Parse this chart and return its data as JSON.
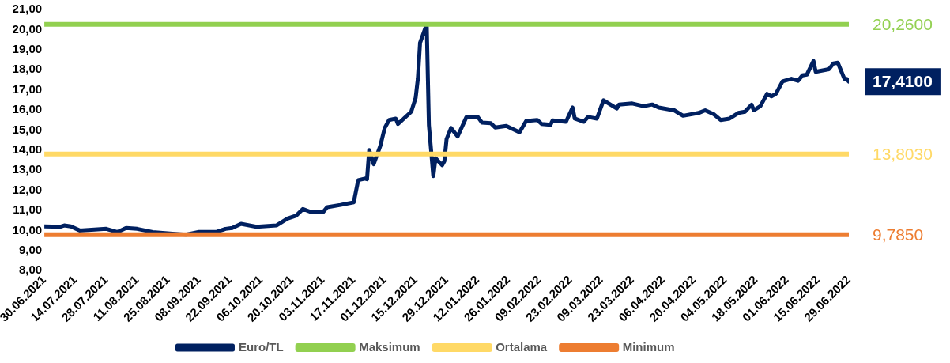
{
  "chart_data": {
    "type": "line",
    "xlim": [
      "2021-06-30",
      "2022-06-29"
    ],
    "xticks": [
      {
        "value": "2021-06-30",
        "label": "30.06.2021"
      },
      {
        "value": "2021-07-14",
        "label": "14.07.2021"
      },
      {
        "value": "2021-07-28",
        "label": "28.07.2021"
      },
      {
        "value": "2021-08-11",
        "label": "11.08.2021"
      },
      {
        "value": "2021-08-25",
        "label": "25.08.2021"
      },
      {
        "value": "2021-09-08",
        "label": "08.09.2021"
      },
      {
        "value": "2021-09-22",
        "label": "22.09.2021"
      },
      {
        "value": "2021-10-06",
        "label": "06.10.2021"
      },
      {
        "value": "2021-10-20",
        "label": "20.10.2021"
      },
      {
        "value": "2021-11-03",
        "label": "03.11.2021"
      },
      {
        "value": "2021-11-17",
        "label": "17.11.2021"
      },
      {
        "value": "2021-12-01",
        "label": "01.12.2021"
      },
      {
        "value": "2021-12-15",
        "label": "15.12.2021"
      },
      {
        "value": "2021-12-29",
        "label": "29.12.2021"
      },
      {
        "value": "2022-01-12",
        "label": "12.01.2022"
      },
      {
        "value": "2022-01-26",
        "label": "26.01.2022"
      },
      {
        "value": "2022-02-09",
        "label": "09.02.2022"
      },
      {
        "value": "2022-02-23",
        "label": "23.02.2022"
      },
      {
        "value": "2022-03-09",
        "label": "09.03.2022"
      },
      {
        "value": "2022-03-23",
        "label": "23.03.2022"
      },
      {
        "value": "2022-04-06",
        "label": "06.04.2022"
      },
      {
        "value": "2022-04-20",
        "label": "20.04.2022"
      },
      {
        "value": "2022-05-04",
        "label": "04.05.2022"
      },
      {
        "value": "2022-05-18",
        "label": "18.05.2022"
      },
      {
        "value": "2022-06-01",
        "label": "01.06.2022"
      },
      {
        "value": "2022-06-15",
        "label": "15.06.2022"
      },
      {
        "value": "2022-06-29",
        "label": "29.06.2022"
      }
    ],
    "ylim": [
      8,
      21
    ],
    "yticks": [
      {
        "value": 8,
        "label": "8,00"
      },
      {
        "value": 9,
        "label": "9,00"
      },
      {
        "value": 10,
        "label": "10,00"
      },
      {
        "value": 11,
        "label": "11,00"
      },
      {
        "value": 12,
        "label": "12,00"
      },
      {
        "value": 13,
        "label": "13,00"
      },
      {
        "value": 14,
        "label": "14,00"
      },
      {
        "value": 15,
        "label": "15,00"
      },
      {
        "value": 16,
        "label": "16,00"
      },
      {
        "value": 17,
        "label": "17,00"
      },
      {
        "value": 18,
        "label": "18,00"
      },
      {
        "value": 19,
        "label": "19,00"
      },
      {
        "value": 20,
        "label": "20,00"
      },
      {
        "value": 21,
        "label": "21,00"
      }
    ],
    "grid": false,
    "legend": "bottom",
    "marker": "none",
    "line_style": "solid",
    "series": [
      {
        "name": "Euro/TL",
        "color": "#002060",
        "x": [
          "2021-06-30",
          "2021-07-07",
          "2021-07-09",
          "2021-07-12",
          "2021-07-16",
          "2021-07-28",
          "2021-08-02",
          "2021-08-06",
          "2021-08-11",
          "2021-08-18",
          "2021-08-27",
          "2021-09-02",
          "2021-09-08",
          "2021-09-16",
          "2021-09-20",
          "2021-09-23",
          "2021-09-27",
          "2021-10-04",
          "2021-10-13",
          "2021-10-18",
          "2021-10-22",
          "2021-10-25",
          "2021-10-29",
          "2021-11-03",
          "2021-11-05",
          "2021-11-11",
          "2021-11-17",
          "2021-11-19",
          "2021-11-22",
          "2021-11-23",
          "2021-11-24",
          "2021-11-26",
          "2021-11-29",
          "2021-12-01",
          "2021-12-03",
          "2021-12-06",
          "2021-12-07",
          "2021-12-13",
          "2021-12-15",
          "2021-12-16",
          "2021-12-17",
          "2021-12-20",
          "2021-12-21",
          "2021-12-23",
          "2021-12-24",
          "2021-12-27",
          "2021-12-28",
          "2021-12-29",
          "2021-12-31",
          "2022-01-03",
          "2022-01-07",
          "2022-01-12",
          "2022-01-14",
          "2022-01-18",
          "2022-01-20",
          "2022-01-25",
          "2022-01-31",
          "2022-02-03",
          "2022-02-08",
          "2022-02-10",
          "2022-02-14",
          "2022-02-15",
          "2022-02-21",
          "2022-02-24",
          "2022-02-25",
          "2022-03-01",
          "2022-03-03",
          "2022-03-07",
          "2022-03-10",
          "2022-03-16",
          "2022-03-17",
          "2022-03-23",
          "2022-03-28",
          "2022-04-01",
          "2022-04-04",
          "2022-04-11",
          "2022-04-15",
          "2022-04-22",
          "2022-04-25",
          "2022-04-29",
          "2022-05-02",
          "2022-05-06",
          "2022-05-10",
          "2022-05-13",
          "2022-05-16",
          "2022-05-17",
          "2022-05-20",
          "2022-05-23",
          "2022-05-25",
          "2022-05-27",
          "2022-05-30",
          "2022-06-03",
          "2022-06-06",
          "2022-06-08",
          "2022-06-10",
          "2022-06-13",
          "2022-06-14",
          "2022-06-20",
          "2022-06-22",
          "2022-06-24",
          "2022-06-27",
          "2022-06-28",
          "2022-06-29"
        ],
        "values": [
          10.2,
          10.18,
          10.25,
          10.2,
          10.0,
          10.08,
          9.92,
          10.12,
          10.08,
          9.92,
          9.84,
          9.79,
          9.93,
          9.93,
          10.08,
          10.12,
          10.33,
          10.18,
          10.25,
          10.59,
          10.74,
          11.07,
          10.9,
          10.9,
          11.16,
          11.27,
          11.4,
          12.5,
          12.58,
          12.55,
          14.0,
          13.3,
          14.2,
          15.1,
          15.5,
          15.57,
          15.3,
          15.91,
          16.6,
          17.55,
          19.34,
          20.26,
          15.24,
          12.7,
          13.6,
          13.25,
          13.45,
          14.55,
          15.1,
          14.68,
          15.65,
          15.67,
          15.37,
          15.34,
          15.12,
          15.2,
          14.89,
          15.45,
          15.5,
          15.3,
          15.26,
          15.48,
          15.41,
          16.12,
          15.57,
          15.41,
          15.65,
          15.57,
          16.48,
          16.07,
          16.27,
          16.32,
          16.19,
          16.27,
          16.12,
          15.98,
          15.71,
          15.85,
          15.98,
          15.78,
          15.5,
          15.57,
          15.85,
          15.91,
          16.26,
          15.98,
          16.19,
          16.8,
          16.68,
          16.8,
          17.42,
          17.55,
          17.45,
          17.72,
          17.76,
          18.44,
          17.9,
          18.03,
          18.31,
          18.35,
          17.55,
          17.55,
          17.41
        ],
        "value_labels": [
          null,
          null,
          null,
          null,
          null,
          null,
          null,
          null,
          null,
          null,
          null,
          null,
          null,
          null,
          null,
          null,
          null,
          null,
          null,
          null,
          null,
          null,
          null,
          null,
          null,
          null,
          null,
          null,
          null,
          null,
          null,
          null,
          null,
          null,
          null,
          null,
          null,
          null,
          null,
          null,
          null,
          null,
          null,
          null,
          null,
          null,
          null,
          null,
          null,
          null,
          null,
          null,
          null,
          null,
          null,
          null,
          null,
          null,
          null,
          null,
          null,
          null,
          null,
          null,
          null,
          null,
          null,
          null,
          null,
          null,
          null,
          null,
          null,
          null,
          null,
          null,
          null,
          null,
          null,
          null,
          null,
          null,
          null,
          null,
          null,
          null,
          null,
          null,
          null,
          null,
          null,
          null,
          null,
          null,
          null,
          null,
          null,
          null,
          null,
          null,
          null,
          null,
          "17,4100"
        ]
      },
      {
        "name": "Maksimum",
        "color": "#92d050",
        "x": [
          "2021-06-30",
          "2022-06-29"
        ],
        "values": [
          20.26,
          20.26
        ],
        "value_labels": [
          null,
          "20,2600"
        ]
      },
      {
        "name": "Ortalama",
        "color": "#ffd966",
        "x": [
          "2021-06-30",
          "2022-06-29"
        ],
        "values": [
          13.803,
          13.803
        ],
        "value_labels": [
          null,
          "13,8030"
        ]
      },
      {
        "name": "Minimum",
        "color": "#ed7d31",
        "x": [
          "2021-06-30",
          "2022-06-29"
        ],
        "values": [
          9.785,
          9.785
        ],
        "value_labels": [
          null,
          "9,7850"
        ]
      }
    ]
  }
}
